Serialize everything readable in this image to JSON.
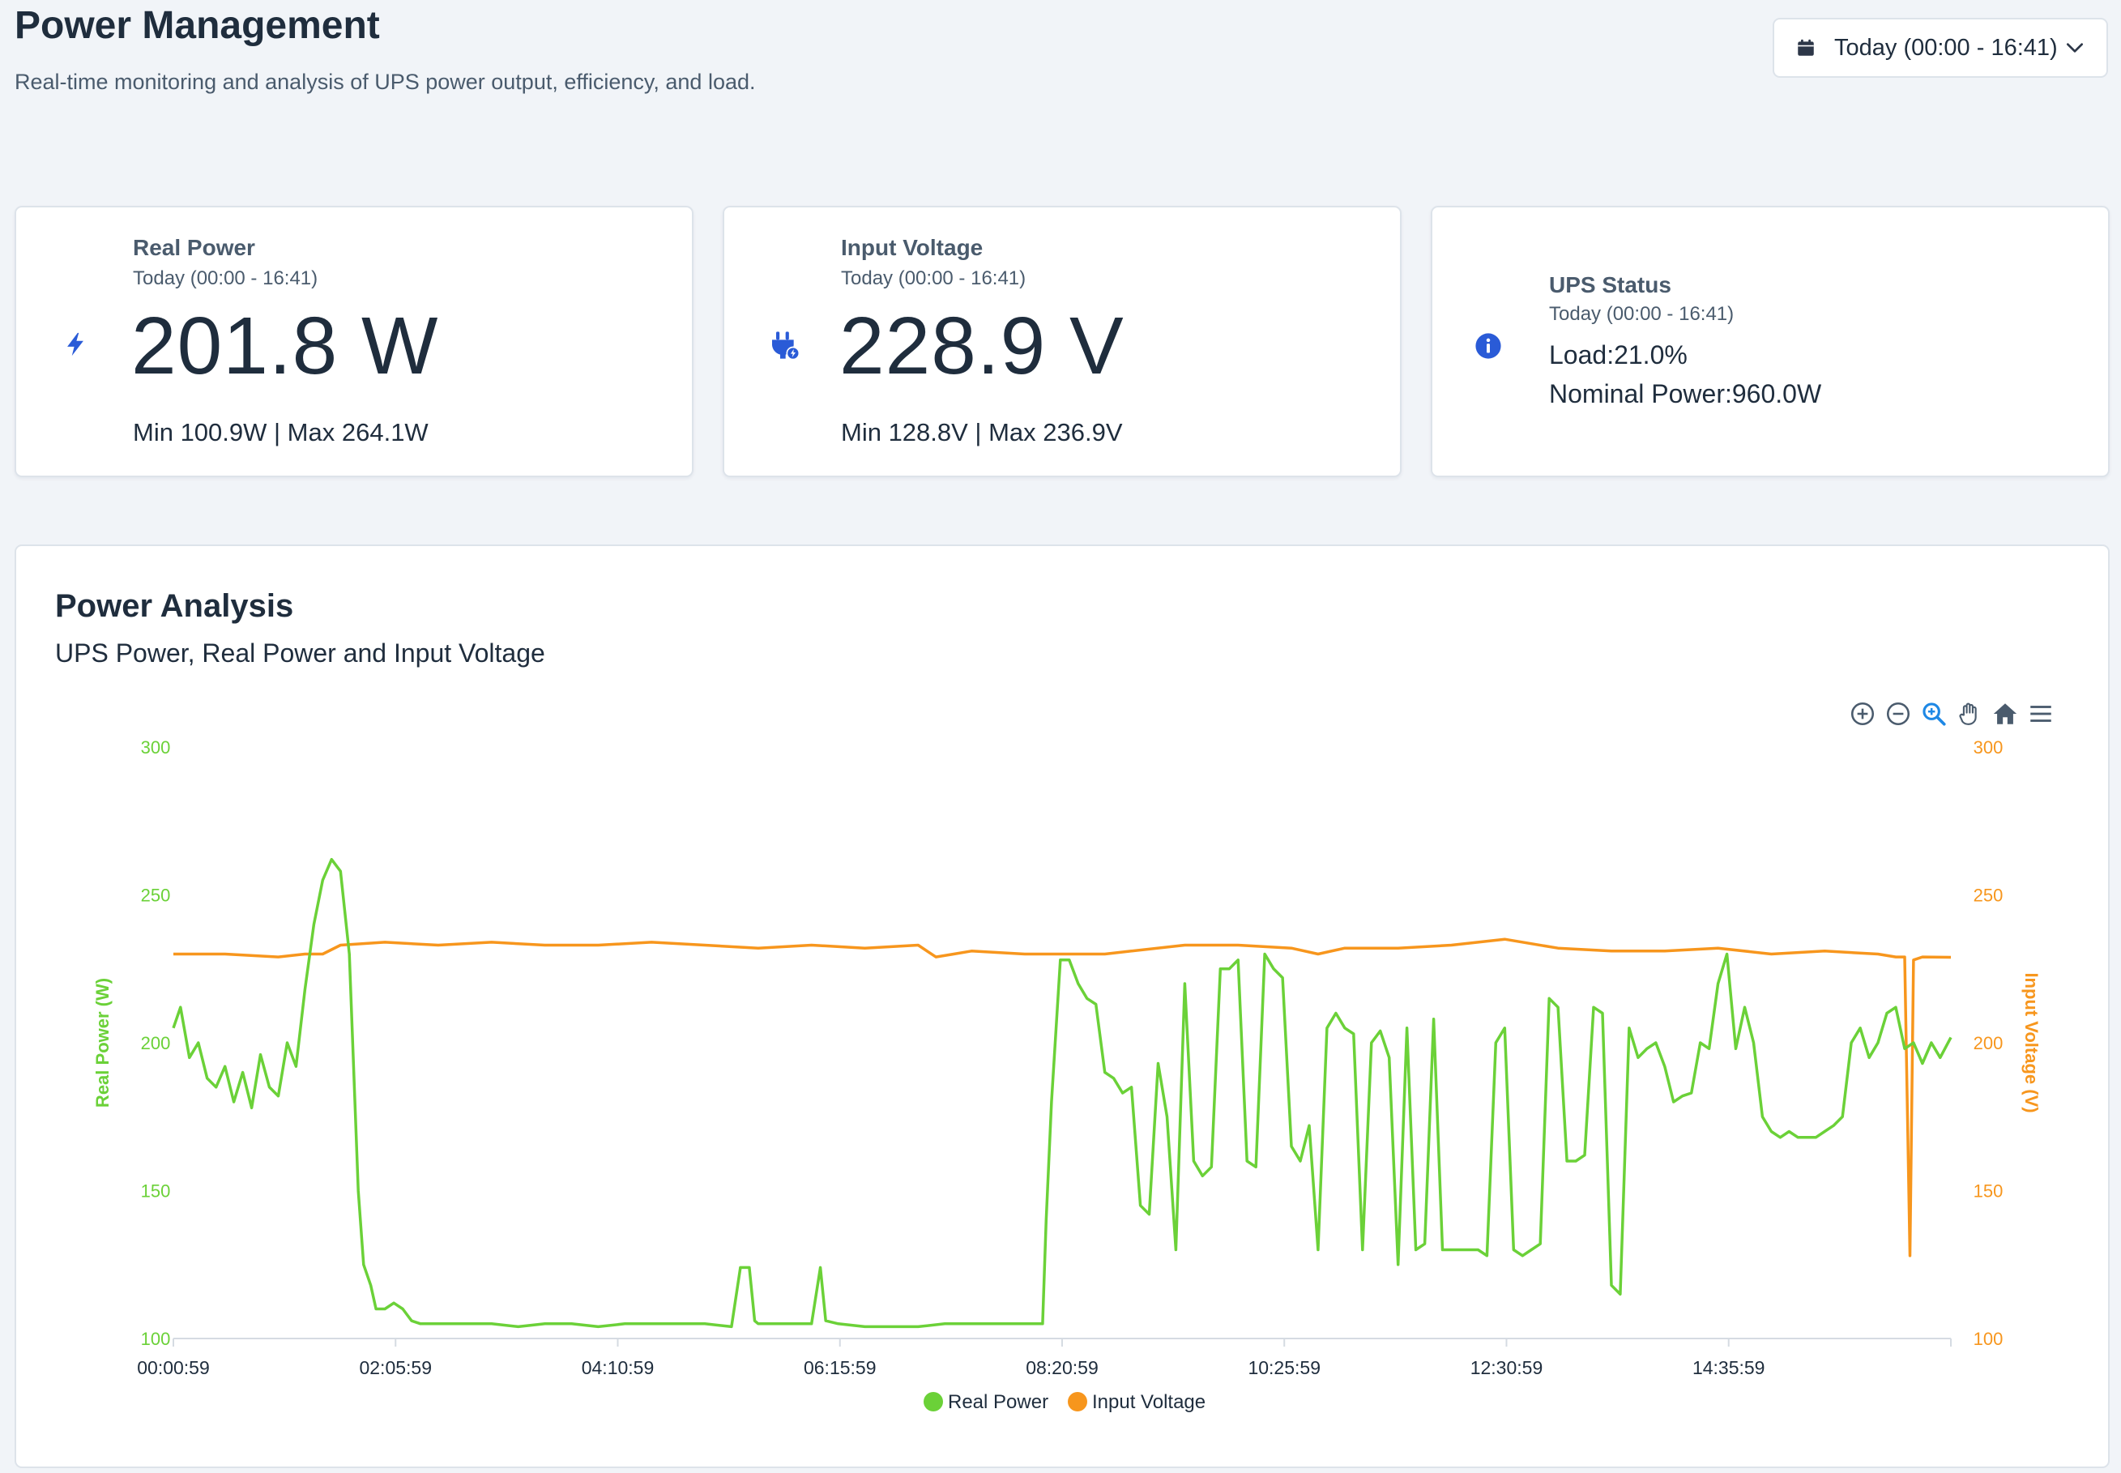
{
  "header": {
    "title": "Power Management",
    "subtitle": "Real-time monitoring and analysis of UPS power output, efficiency, and load."
  },
  "date_range": {
    "label": "Today (00:00 - 16:41)",
    "icon": "calendar-icon"
  },
  "cards": {
    "real_power": {
      "title": "Real Power",
      "period": "Today (00:00 - 16:41)",
      "value": "201.8 W",
      "minmax": "Min 100.9W | Max 264.1W",
      "icon": "bolt-icon",
      "color": "#2a5bd7"
    },
    "input_voltage": {
      "title": "Input Voltage",
      "period": "Today (00:00 - 16:41)",
      "value": "228.9 V",
      "minmax": "Min 128.8V | Max 236.9V",
      "icon": "plug-icon",
      "color": "#2a5bd7"
    },
    "ups_status": {
      "title": "UPS Status",
      "period": "Today (00:00 - 16:41)",
      "load": "Load:21.0%",
      "nominal": "Nominal Power:960.0W",
      "icon": "info-icon",
      "color": "#2a5bd7"
    }
  },
  "analysis": {
    "title": "Power Analysis",
    "subtitle": "UPS Power, Real Power and Input Voltage",
    "toolbar": [
      "zoom-in-icon",
      "zoom-out-icon",
      "zoom-select-icon",
      "pan-icon",
      "reset-home-icon",
      "menu-icon"
    ]
  },
  "chart_data": {
    "type": "line",
    "x_start": "00:00:59",
    "x_end": "16:41:00",
    "xticks": [
      "00:00:59",
      "02:05:59",
      "04:10:59",
      "06:15:59",
      "08:20:59",
      "10:25:59",
      "12:30:59",
      "14:35:59"
    ],
    "y_left": {
      "label": "Real Power (W)",
      "range": [
        100,
        300
      ],
      "ticks": [
        100,
        150,
        200,
        250,
        300
      ],
      "color": "#6bd138"
    },
    "y_right": {
      "label": "Input Voltage (V)",
      "range": [
        100,
        300
      ],
      "ticks": [
        100,
        150,
        200,
        250,
        300
      ],
      "color": "#f7961d"
    },
    "legend": {
      "placement": "bottom-center"
    },
    "grid": false,
    "series": [
      {
        "name": "Real Power",
        "color": "#6bd138",
        "points": [
          [
            "00:00:59",
            205
          ],
          [
            "00:05",
            212
          ],
          [
            "00:10",
            195
          ],
          [
            "00:15",
            200
          ],
          [
            "00:20",
            188
          ],
          [
            "00:25",
            185
          ],
          [
            "00:30",
            192
          ],
          [
            "00:35",
            180
          ],
          [
            "00:40",
            190
          ],
          [
            "00:45",
            178
          ],
          [
            "00:50",
            196
          ],
          [
            "00:55",
            185
          ],
          [
            "01:00",
            182
          ],
          [
            "01:05",
            200
          ],
          [
            "01:10",
            192
          ],
          [
            "01:15",
            218
          ],
          [
            "01:20",
            240
          ],
          [
            "01:25",
            255
          ],
          [
            "01:30",
            262
          ],
          [
            "01:35",
            258
          ],
          [
            "01:40",
            230
          ],
          [
            "01:45",
            150
          ],
          [
            "01:48",
            125
          ],
          [
            "01:52",
            118
          ],
          [
            "01:55",
            110
          ],
          [
            "02:00",
            110
          ],
          [
            "02:05",
            112
          ],
          [
            "02:10",
            110
          ],
          [
            "02:15",
            106
          ],
          [
            "02:20",
            105
          ],
          [
            "02:30",
            105
          ],
          [
            "02:45",
            105
          ],
          [
            "03:00",
            105
          ],
          [
            "03:15",
            104
          ],
          [
            "03:30",
            105
          ],
          [
            "03:45",
            105
          ],
          [
            "04:00",
            104
          ],
          [
            "04:15",
            105
          ],
          [
            "04:30",
            105
          ],
          [
            "04:45",
            105
          ],
          [
            "05:00",
            105
          ],
          [
            "05:15",
            104
          ],
          [
            "05:20",
            124
          ],
          [
            "05:25",
            124
          ],
          [
            "05:28",
            106
          ],
          [
            "05:30",
            105
          ],
          [
            "05:45",
            105
          ],
          [
            "06:00",
            105
          ],
          [
            "06:05",
            124
          ],
          [
            "06:08",
            106
          ],
          [
            "06:15",
            105
          ],
          [
            "06:30",
            104
          ],
          [
            "06:45",
            104
          ],
          [
            "07:00",
            104
          ],
          [
            "07:15",
            105
          ],
          [
            "07:30",
            105
          ],
          [
            "07:45",
            105
          ],
          [
            "08:00",
            105
          ],
          [
            "08:10",
            105
          ],
          [
            "08:12",
            140
          ],
          [
            "08:15",
            180
          ],
          [
            "08:20",
            228
          ],
          [
            "08:25",
            228
          ],
          [
            "08:30",
            220
          ],
          [
            "08:35",
            215
          ],
          [
            "08:40",
            213
          ],
          [
            "08:45",
            190
          ],
          [
            "08:50",
            188
          ],
          [
            "08:55",
            183
          ],
          [
            "09:00",
            185
          ],
          [
            "09:05",
            145
          ],
          [
            "09:10",
            142
          ],
          [
            "09:15",
            193
          ],
          [
            "09:20",
            175
          ],
          [
            "09:25",
            130
          ],
          [
            "09:30",
            220
          ],
          [
            "09:35",
            160
          ],
          [
            "09:40",
            155
          ],
          [
            "09:45",
            158
          ],
          [
            "09:50",
            225
          ],
          [
            "09:55",
            225
          ],
          [
            "10:00",
            228
          ],
          [
            "10:05",
            160
          ],
          [
            "10:10",
            158
          ],
          [
            "10:15",
            230
          ],
          [
            "10:20",
            225
          ],
          [
            "10:25",
            222
          ],
          [
            "10:30",
            165
          ],
          [
            "10:35",
            160
          ],
          [
            "10:40",
            172
          ],
          [
            "10:45",
            130
          ],
          [
            "10:50",
            205
          ],
          [
            "10:55",
            210
          ],
          [
            "11:00",
            205
          ],
          [
            "11:05",
            203
          ],
          [
            "11:10",
            130
          ],
          [
            "11:15",
            200
          ],
          [
            "11:20",
            204
          ],
          [
            "11:25",
            195
          ],
          [
            "11:30",
            125
          ],
          [
            "11:35",
            205
          ],
          [
            "11:40",
            130
          ],
          [
            "11:45",
            132
          ],
          [
            "11:50",
            208
          ],
          [
            "11:55",
            130
          ],
          [
            "12:00",
            130
          ],
          [
            "12:05",
            130
          ],
          [
            "12:10",
            130
          ],
          [
            "12:15",
            130
          ],
          [
            "12:20",
            128
          ],
          [
            "12:25",
            200
          ],
          [
            "12:30",
            205
          ],
          [
            "12:35",
            130
          ],
          [
            "12:40",
            128
          ],
          [
            "12:45",
            130
          ],
          [
            "12:50",
            132
          ],
          [
            "12:55",
            215
          ],
          [
            "13:00",
            212
          ],
          [
            "13:05",
            160
          ],
          [
            "13:10",
            160
          ],
          [
            "13:15",
            162
          ],
          [
            "13:20",
            212
          ],
          [
            "13:25",
            210
          ],
          [
            "13:30",
            118
          ],
          [
            "13:35",
            115
          ],
          [
            "13:40",
            205
          ],
          [
            "13:45",
            195
          ],
          [
            "13:50",
            198
          ],
          [
            "13:55",
            200
          ],
          [
            "14:00",
            192
          ],
          [
            "14:05",
            180
          ],
          [
            "14:10",
            182
          ],
          [
            "14:15",
            183
          ],
          [
            "14:20",
            200
          ],
          [
            "14:25",
            198
          ],
          [
            "14:30",
            220
          ],
          [
            "14:35",
            230
          ],
          [
            "14:40",
            198
          ],
          [
            "14:45",
            212
          ],
          [
            "14:50",
            200
          ],
          [
            "14:55",
            175
          ],
          [
            "15:00",
            170
          ],
          [
            "15:05",
            168
          ],
          [
            "15:10",
            170
          ],
          [
            "15:15",
            168
          ],
          [
            "15:20",
            168
          ],
          [
            "15:25",
            168
          ],
          [
            "15:30",
            170
          ],
          [
            "15:35",
            172
          ],
          [
            "15:40",
            175
          ],
          [
            "15:45",
            200
          ],
          [
            "15:50",
            205
          ],
          [
            "15:55",
            195
          ],
          [
            "16:00",
            200
          ],
          [
            "16:05",
            210
          ],
          [
            "16:10",
            212
          ],
          [
            "16:15",
            198
          ],
          [
            "16:20",
            200
          ],
          [
            "16:25",
            193
          ],
          [
            "16:30",
            200
          ],
          [
            "16:35",
            195
          ],
          [
            "16:41",
            201.8
          ]
        ]
      },
      {
        "name": "Input Voltage",
        "color": "#f7961d",
        "points": [
          [
            "00:00:59",
            230
          ],
          [
            "00:30",
            230
          ],
          [
            "01:00",
            229
          ],
          [
            "01:15",
            230
          ],
          [
            "01:25",
            230
          ],
          [
            "01:35",
            233
          ],
          [
            "02:00",
            234
          ],
          [
            "02:30",
            233
          ],
          [
            "03:00",
            234
          ],
          [
            "03:30",
            233
          ],
          [
            "04:00",
            233
          ],
          [
            "04:30",
            234
          ],
          [
            "05:00",
            233
          ],
          [
            "05:30",
            232
          ],
          [
            "06:00",
            233
          ],
          [
            "06:30",
            232
          ],
          [
            "07:00",
            233
          ],
          [
            "07:10",
            229
          ],
          [
            "07:20",
            230
          ],
          [
            "07:30",
            231
          ],
          [
            "08:00",
            230
          ],
          [
            "08:20",
            230
          ],
          [
            "08:45",
            230
          ],
          [
            "09:00",
            231
          ],
          [
            "09:30",
            233
          ],
          [
            "10:00",
            233
          ],
          [
            "10:30",
            232
          ],
          [
            "10:45",
            230
          ],
          [
            "11:00",
            232
          ],
          [
            "11:30",
            232
          ],
          [
            "12:00",
            233
          ],
          [
            "12:30",
            235
          ],
          [
            "13:00",
            232
          ],
          [
            "13:30",
            231
          ],
          [
            "14:00",
            231
          ],
          [
            "14:30",
            232
          ],
          [
            "15:00",
            230
          ],
          [
            "15:30",
            231
          ],
          [
            "16:00",
            230
          ],
          [
            "16:10",
            229
          ],
          [
            "16:15",
            229
          ],
          [
            "16:18",
            128
          ],
          [
            "16:20",
            228
          ],
          [
            "16:25",
            229
          ],
          [
            "16:41",
            228.9
          ]
        ]
      }
    ]
  }
}
